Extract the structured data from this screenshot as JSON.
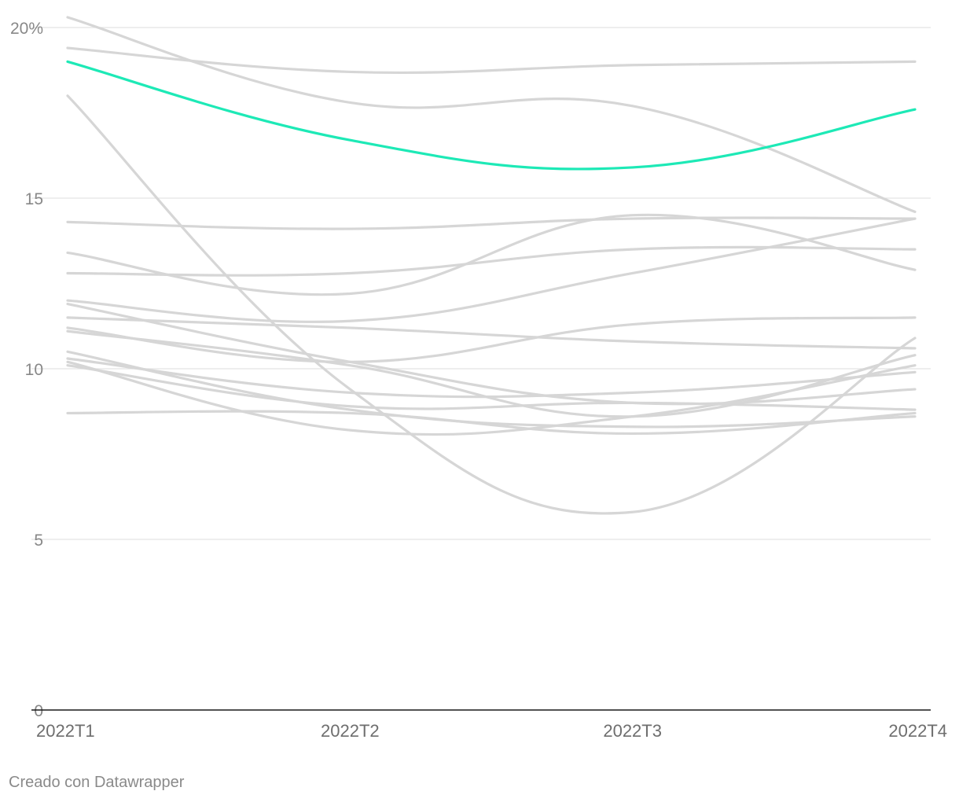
{
  "chart_data": {
    "type": "line",
    "title": "",
    "xlabel": "",
    "ylabel": "",
    "x": [
      "2022T1",
      "2022T2",
      "2022T3",
      "2022T4"
    ],
    "ylim": [
      0,
      20
    ],
    "yticks": [
      {
        "value": 0,
        "label": "0"
      },
      {
        "value": 5,
        "label": "5"
      },
      {
        "value": 10,
        "label": "10"
      },
      {
        "value": 15,
        "label": "15"
      },
      {
        "value": 20,
        "label": "20%"
      }
    ],
    "grid": true,
    "legend": "none",
    "colors": {
      "highlight": "#1de9b6",
      "other": "#d6d6d6",
      "grid": "#e3e3e3",
      "axis": "#1a1a1a"
    },
    "series": [
      {
        "values": [
          20.3,
          17.8,
          17.7,
          14.6
        ]
      },
      {
        "values": [
          19.4,
          18.7,
          18.9,
          19.0
        ]
      },
      {
        "values": [
          18.0,
          9.4,
          5.8,
          10.9
        ]
      },
      {
        "values": [
          14.3,
          14.1,
          14.4,
          14.4
        ]
      },
      {
        "values": [
          13.4,
          12.2,
          14.5,
          12.9
        ]
      },
      {
        "values": [
          12.8,
          12.8,
          13.5,
          13.5
        ]
      },
      {
        "values": [
          12.0,
          11.4,
          12.8,
          14.4
        ]
      },
      {
        "values": [
          11.9,
          10.2,
          9.0,
          9.4
        ]
      },
      {
        "values": [
          11.5,
          11.2,
          10.8,
          10.6
        ]
      },
      {
        "values": [
          11.2,
          10.2,
          11.3,
          11.5
        ]
      },
      {
        "values": [
          11.1,
          10.1,
          8.6,
          10.4
        ]
      },
      {
        "values": [
          10.5,
          8.8,
          8.3,
          8.6
        ]
      },
      {
        "values": [
          10.3,
          9.3,
          9.3,
          9.9
        ]
      },
      {
        "values": [
          10.2,
          8.2,
          8.6,
          10.1
        ]
      },
      {
        "values": [
          10.1,
          8.9,
          9.0,
          8.8
        ]
      },
      {
        "values": [
          8.7,
          8.7,
          8.1,
          8.7
        ]
      },
      {
        "values": [
          19.0,
          16.7,
          15.9,
          17.6
        ],
        "highlight": true
      }
    ]
  },
  "footer": {
    "credit": "Creado con Datawrapper"
  }
}
